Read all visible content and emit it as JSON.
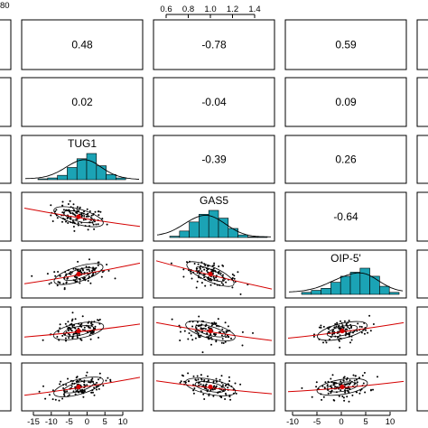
{
  "chart_data": {
    "type": "scatter",
    "variables": [
      "TUG1",
      "GAS5",
      "OIP-5'"
    ],
    "colors": {
      "histogram": "#1ba3b5",
      "fit_line": "#d40000",
      "points": "#000000"
    },
    "top_axis": {
      "left_partial_label": "80",
      "column3_ticks": [
        "0.6",
        "0.8",
        "1.0",
        "1.2",
        "1.4"
      ],
      "column3_tick_values": [
        0.6,
        0.8,
        1.0,
        1.2,
        1.4
      ]
    },
    "bottom_axis": {
      "column2_ticks": [
        "-15",
        "-10",
        "-5",
        "0",
        "5",
        "10"
      ],
      "column2_tick_values": [
        -15,
        -10,
        -5,
        0,
        5,
        10
      ],
      "column4_ticks": [
        "-10",
        "-5",
        "0",
        "5",
        "10"
      ],
      "column4_tick_values": [
        -10,
        -5,
        0,
        5,
        10
      ]
    },
    "correlations": [
      {
        "row": 1,
        "col": 2,
        "value": "0.48"
      },
      {
        "row": 1,
        "col": 3,
        "value": "-0.78"
      },
      {
        "row": 1,
        "col": 4,
        "value": "0.59"
      },
      {
        "row": 2,
        "col": 2,
        "value": "0.02"
      },
      {
        "row": 2,
        "col": 3,
        "value": "-0.04"
      },
      {
        "row": 2,
        "col": 4,
        "value": "0.09"
      },
      {
        "row": 3,
        "col": 3,
        "value": "-0.39"
      },
      {
        "row": 3,
        "col": 4,
        "value": "0.26"
      },
      {
        "row": 4,
        "col": 4,
        "value": "-0.64"
      }
    ],
    "diagonal": [
      {
        "row": 3,
        "col": 2,
        "label": "TUG1",
        "counts": [
          1,
          2,
          5,
          14,
          24,
          30,
          16,
          6,
          2,
          0
        ]
      },
      {
        "row": 4,
        "col": 3,
        "label": "GAS5",
        "counts": [
          2,
          10,
          24,
          36,
          42,
          30,
          14,
          4,
          1,
          1
        ]
      },
      {
        "row": 5,
        "col": 4,
        "label": "OIP-5'",
        "counts": [
          2,
          4,
          6,
          12,
          18,
          22,
          26,
          18,
          8,
          2
        ]
      }
    ],
    "scatter_panels": [
      {
        "row": 4,
        "col": 2,
        "trend": -0.35
      },
      {
        "row": 5,
        "col": 2,
        "trend": 0.4
      },
      {
        "row": 5,
        "col": 3,
        "trend": -0.55
      },
      {
        "row": 6,
        "col": 2,
        "trend": 0.25
      },
      {
        "row": 6,
        "col": 3,
        "trend": -0.35
      },
      {
        "row": 6,
        "col": 4,
        "trend": 0.3
      },
      {
        "row": 7,
        "col": 2,
        "trend": 0.35
      },
      {
        "row": 7,
        "col": 3,
        "trend": -0.25
      },
      {
        "row": 7,
        "col": 4,
        "trend": 0.2
      }
    ]
  }
}
